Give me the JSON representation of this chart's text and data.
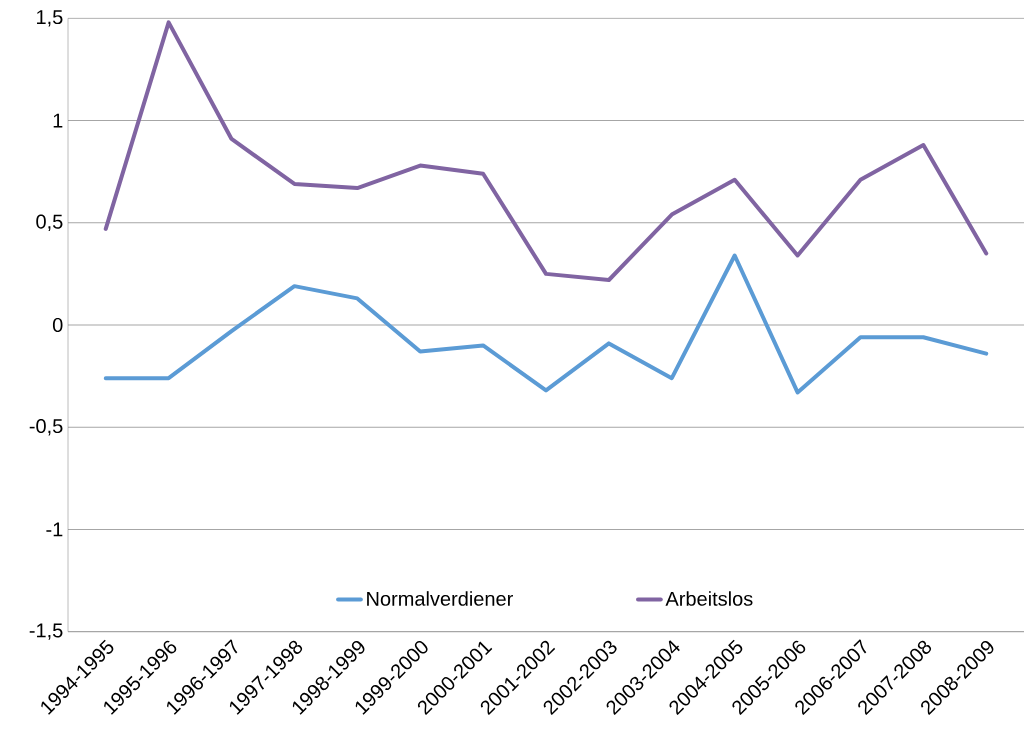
{
  "chart_data": {
    "type": "line",
    "categories": [
      "1994-1995",
      "1995-1996",
      "1996-1997",
      "1997-1998",
      "1998-1999",
      "1999-2000",
      "2000-2001",
      "2001-2002",
      "2002-2003",
      "2003-2004",
      "2004-2005",
      "2005-2006",
      "2006-2007",
      "2007-2008",
      "2008-2009"
    ],
    "series": [
      {
        "name": "Normalverdiener",
        "color": "#5b9bd5",
        "values": [
          -0.26,
          -0.26,
          -0.03,
          0.19,
          0.13,
          -0.13,
          -0.1,
          -0.32,
          -0.09,
          -0.26,
          0.34,
          -0.33,
          -0.06,
          -0.06,
          -0.14
        ]
      },
      {
        "name": "Arbeitslos",
        "color": "#8064a2",
        "values": [
          0.47,
          1.48,
          0.91,
          0.69,
          0.67,
          0.78,
          0.74,
          0.25,
          0.22,
          0.54,
          0.71,
          0.34,
          0.71,
          0.88,
          0.35
        ]
      }
    ],
    "ylim": [
      -1.5,
      1.5
    ],
    "yticks": [
      {
        "value": -1.5,
        "label": "-1,5"
      },
      {
        "value": -1,
        "label": "-1"
      },
      {
        "value": -0.5,
        "label": "-0,5"
      },
      {
        "value": 0,
        "label": "0"
      },
      {
        "value": 0.5,
        "label": "0,5"
      },
      {
        "value": 1,
        "label": "1"
      },
      {
        "value": 1.5,
        "label": "1,5"
      }
    ],
    "grid": "y",
    "legend": "bottom",
    "marker": "none",
    "line_style": "solid"
  }
}
